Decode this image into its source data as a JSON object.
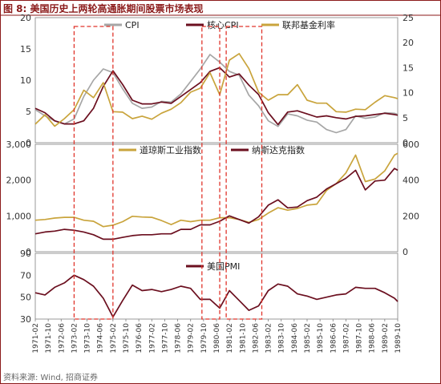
{
  "title": "图 8:  美国历史上两轮高通胀期间股票市场表现",
  "source": "资料来源: Wind, 招商证券",
  "colors": {
    "cpi": "#a6a6a6",
    "core": "#6b0f1f",
    "fed": "#c9a43c",
    "box": "#e0342b",
    "border": "#8b1a1a"
  },
  "highlight_periods": [
    [
      "1973-02",
      "1975-02"
    ],
    [
      "1979-09",
      "1980-08"
    ],
    [
      "1980-12",
      "1982-10"
    ]
  ],
  "chart_data": [
    {
      "type": "line",
      "title": "",
      "x": [
        "1971-02",
        "1971-08",
        "1972-02",
        "1972-08",
        "1973-02",
        "1973-08",
        "1974-02",
        "1974-08",
        "1975-02",
        "1975-08",
        "1976-02",
        "1976-08",
        "1977-02",
        "1977-08",
        "1978-02",
        "1978-08",
        "1979-02",
        "1979-08",
        "1980-02",
        "1980-08",
        "1981-02",
        "1981-08",
        "1982-02",
        "1982-08",
        "1983-02",
        "1983-08",
        "1984-02",
        "1984-08",
        "1985-02",
        "1985-08",
        "1986-02",
        "1986-08",
        "1987-02",
        "1987-08",
        "1988-02",
        "1988-08",
        "1989-02",
        "1989-08",
        "1989-10"
      ],
      "yticks_left": [
        0,
        5,
        10,
        15,
        20
      ],
      "yticks_right": [
        0,
        5,
        10,
        15,
        20,
        25
      ],
      "ylim_left": [
        0,
        20
      ],
      "ylim_right": [
        0,
        25
      ],
      "series": [
        {
          "name": "CPI",
          "axis": "left",
          "values": [
            5.3,
            4.3,
            3.5,
            3.0,
            3.8,
            7.4,
            10.0,
            11.8,
            11.2,
            8.6,
            6.3,
            5.5,
            5.7,
            6.6,
            6.5,
            7.8,
            9.8,
            11.8,
            14.1,
            12.9,
            11.4,
            10.8,
            7.6,
            5.9,
            3.5,
            2.6,
            4.6,
            4.3,
            3.6,
            3.3,
            2.1,
            1.6,
            2.1,
            4.3,
            3.9,
            4.1,
            4.8,
            4.7,
            4.5
          ]
        },
        {
          "name": "核心CPI",
          "axis": "left",
          "values": [
            5.5,
            4.8,
            3.5,
            3.0,
            3.0,
            3.5,
            5.5,
            9.0,
            11.5,
            9.3,
            6.8,
            6.2,
            6.2,
            6.5,
            6.3,
            7.4,
            8.5,
            9.6,
            11.4,
            12.0,
            10.5,
            11.0,
            9.2,
            7.7,
            4.8,
            2.9,
            4.9,
            5.1,
            4.6,
            4.1,
            4.3,
            4.0,
            3.8,
            4.2,
            4.3,
            4.5,
            4.7,
            4.5,
            4.4
          ]
        },
        {
          "name": "联邦基金利率",
          "axis": "right",
          "values": [
            3.7,
            5.6,
            3.3,
            4.8,
            6.6,
            10.5,
            9.0,
            12.0,
            6.2,
            6.1,
            4.8,
            5.3,
            4.7,
            5.9,
            6.7,
            8.0,
            10.1,
            10.9,
            14.0,
            9.6,
            16.5,
            17.8,
            14.8,
            10.1,
            8.5,
            9.6,
            9.6,
            11.6,
            8.5,
            7.9,
            7.9,
            6.2,
            6.1,
            6.7,
            6.6,
            8.1,
            9.4,
            9.0,
            8.8
          ]
        }
      ]
    },
    {
      "type": "line",
      "title": "",
      "x": [
        "1971-02",
        "1971-08",
        "1972-02",
        "1972-08",
        "1973-02",
        "1973-08",
        "1974-02",
        "1974-08",
        "1975-02",
        "1975-08",
        "1976-02",
        "1976-08",
        "1977-02",
        "1977-08",
        "1978-02",
        "1978-08",
        "1979-02",
        "1979-08",
        "1980-02",
        "1980-08",
        "1981-02",
        "1981-08",
        "1982-02",
        "1982-08",
        "1983-02",
        "1983-08",
        "1984-02",
        "1984-08",
        "1985-02",
        "1985-08",
        "1986-02",
        "1986-08",
        "1987-02",
        "1987-08",
        "1988-02",
        "1988-08",
        "1989-02",
        "1989-08",
        "1989-10"
      ],
      "yticks_left": [
        "0",
        "1,000",
        "2,000",
        "3,000"
      ],
      "yticks_right": [
        "0",
        "200",
        "400",
        "600"
      ],
      "ylim_left": [
        0,
        3000
      ],
      "ylim_right": [
        0,
        600
      ],
      "series": [
        {
          "name": "道琼斯工业指数",
          "axis": "left",
          "values": [
            880,
            900,
            940,
            960,
            960,
            880,
            850,
            700,
            740,
            840,
            990,
            970,
            960,
            870,
            760,
            880,
            840,
            880,
            880,
            950,
            950,
            900,
            820,
            900,
            1080,
            1230,
            1160,
            1210,
            1300,
            1330,
            1710,
            1900,
            2200,
            2700,
            1960,
            2030,
            2260,
            2700,
            2750
          ]
        },
        {
          "name": "纳斯达克指数",
          "axis": "right",
          "values": [
            100,
            110,
            115,
            125,
            120,
            110,
            95,
            70,
            70,
            80,
            90,
            95,
            95,
            100,
            100,
            125,
            125,
            150,
            150,
            170,
            200,
            180,
            160,
            195,
            260,
            290,
            245,
            250,
            285,
            305,
            350,
            380,
            410,
            455,
            345,
            395,
            400,
            465,
            455
          ]
        }
      ]
    },
    {
      "type": "line",
      "title": "",
      "x": [
        "1971-02",
        "1971-08",
        "1972-02",
        "1972-08",
        "1973-02",
        "1973-08",
        "1974-02",
        "1974-08",
        "1975-02",
        "1975-08",
        "1976-02",
        "1976-08",
        "1977-02",
        "1977-08",
        "1978-02",
        "1978-08",
        "1979-02",
        "1979-08",
        "1980-02",
        "1980-08",
        "1981-02",
        "1981-08",
        "1982-02",
        "1982-08",
        "1983-02",
        "1983-08",
        "1984-02",
        "1984-08",
        "1985-02",
        "1985-08",
        "1986-02",
        "1986-08",
        "1987-02",
        "1987-08",
        "1988-02",
        "1988-08",
        "1989-02",
        "1989-08",
        "1989-10"
      ],
      "yticks_left": [
        30,
        50,
        70,
        90
      ],
      "ylim_left": [
        30,
        90
      ],
      "series": [
        {
          "name": "美国PMI",
          "axis": "left",
          "values": [
            54,
            52,
            59,
            63,
            70,
            66,
            60,
            49,
            32,
            47,
            61,
            56,
            57,
            55,
            57,
            60,
            58,
            48,
            48,
            40,
            56,
            47,
            38,
            42,
            56,
            62,
            60,
            53,
            51,
            48,
            50,
            52,
            53,
            59,
            58,
            58,
            54,
            49,
            46
          ]
        }
      ]
    }
  ],
  "x_tick_labels": [
    "1971-02",
    "1971-10",
    "1972-06",
    "1973-02",
    "1973-10",
    "1974-06",
    "1975-02",
    "1975-10",
    "1976-06",
    "1977-02",
    "1977-10",
    "1978-06",
    "1979-02",
    "1979-10",
    "1980-06",
    "1981-02",
    "1981-10",
    "1982-06",
    "1983-02",
    "1983-10",
    "1984-06",
    "1985-02",
    "1985-10",
    "1986-06",
    "1987-02",
    "1987-10",
    "1988-06",
    "1989-02",
    "1989-10"
  ]
}
